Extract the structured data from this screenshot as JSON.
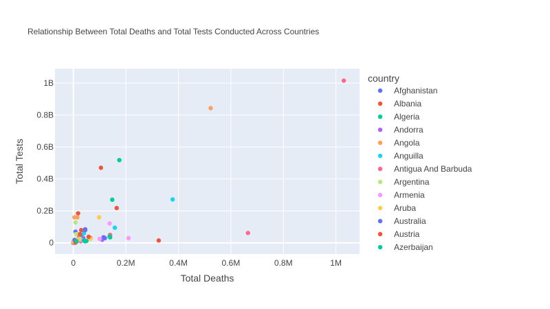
{
  "chart_data": {
    "type": "scatter",
    "title": "Relationship Between Total Deaths and Total Tests Conducted Across Countries",
    "xlabel": "Total Deaths",
    "ylabel": "Total Tests",
    "xlim": [
      -70000,
      1090000
    ],
    "ylim": [
      -70000000,
      1090000000
    ],
    "x_ticks": [
      0,
      200000,
      400000,
      600000,
      800000,
      1000000
    ],
    "x_tick_labels": [
      "0",
      "0.2M",
      "0.4M",
      "0.6M",
      "0.8M",
      "1M"
    ],
    "y_ticks": [
      0,
      200000000,
      400000000,
      600000000,
      800000000,
      1000000000
    ],
    "y_tick_labels": [
      "0",
      "0.2B",
      "0.4B",
      "0.6B",
      "0.8B",
      "1B"
    ],
    "grid": true,
    "plot_bgcolor": "#E5ECF6",
    "legend_title": "country",
    "legend_position": "right",
    "series": [
      {
        "name": "Afghanistan",
        "color": "#636EFA",
        "points": [
          [
            2000,
            10000000
          ],
          [
            5000,
            3000000
          ],
          [
            8000,
            70000000
          ],
          [
            45000,
            85000000
          ],
          [
            115000,
            35000000
          ]
        ]
      },
      {
        "name": "Albania",
        "color": "#EF553B",
        "points": [
          [
            18000,
            185000000
          ],
          [
            105000,
            470000000
          ],
          [
            325000,
            15000000
          ],
          [
            30000,
            80000000
          ],
          [
            65000,
            30000000
          ],
          [
            0,
            0
          ]
        ]
      },
      {
        "name": "Algeria",
        "color": "#00CC96",
        "points": [
          [
            175000,
            518000000
          ],
          [
            148000,
            270000000
          ],
          [
            140000,
            35000000
          ],
          [
            30000,
            40000000
          ],
          [
            45000,
            10000000
          ],
          [
            3000,
            1000000
          ]
        ]
      },
      {
        "name": "Andorra",
        "color": "#AB63FA",
        "points": [
          [
            110000,
            20000000
          ],
          [
            38000,
            30000000
          ],
          [
            8000,
            5000000
          ],
          [
            1000,
            0
          ]
        ]
      },
      {
        "name": "Angola",
        "color": "#FFA15A",
        "points": [
          [
            523000,
            843000000
          ],
          [
            4000,
            160000000
          ],
          [
            15000,
            160000000
          ],
          [
            60000,
            35000000
          ],
          [
            20000,
            30000000
          ]
        ]
      },
      {
        "name": "Anguilla",
        "color": "#19D3F3",
        "points": [
          [
            378000,
            272000000
          ],
          [
            158000,
            95000000
          ],
          [
            40000,
            60000000
          ],
          [
            3000,
            2000000
          ]
        ]
      },
      {
        "name": "Antigua And Barbuda",
        "color": "#FF6692",
        "points": [
          [
            1030000,
            1015000000
          ],
          [
            665000,
            62000000
          ],
          [
            140000,
            50000000
          ],
          [
            20000,
            50000000
          ],
          [
            28000,
            10000000
          ]
        ]
      },
      {
        "name": "Argentina",
        "color": "#B6E880",
        "points": [
          [
            8000,
            128000000
          ],
          [
            10000,
            55000000
          ],
          [
            3000,
            20000000
          ],
          [
            25000,
            25000000
          ]
        ]
      },
      {
        "name": "Armenia",
        "color": "#FF97FF",
        "points": [
          [
            210000,
            30000000
          ],
          [
            138000,
            122000000
          ],
          [
            100000,
            25000000
          ],
          [
            35000,
            15000000
          ]
        ]
      },
      {
        "name": "Aruba",
        "color": "#FECB52",
        "points": [
          [
            98000,
            160000000
          ],
          [
            20000,
            20000000
          ],
          [
            65000,
            25000000
          ],
          [
            2000,
            3000000
          ]
        ]
      },
      {
        "name": "Australia",
        "color": "#636EFA",
        "points": [
          [
            45000,
            80000000
          ],
          [
            120000,
            30000000
          ],
          [
            5000,
            18000000
          ],
          [
            12000,
            8000000
          ]
        ]
      },
      {
        "name": "Austria",
        "color": "#EF553B",
        "points": [
          [
            165000,
            218000000
          ],
          [
            25000,
            55000000
          ],
          [
            58000,
            38000000
          ],
          [
            8000,
            2000000
          ]
        ]
      },
      {
        "name": "Azerbaijan",
        "color": "#00CC96",
        "points": [
          [
            40000,
            15000000
          ],
          [
            138000,
            40000000
          ],
          [
            12000,
            10000000
          ],
          [
            50000,
            12000000
          ]
        ]
      }
    ]
  }
}
